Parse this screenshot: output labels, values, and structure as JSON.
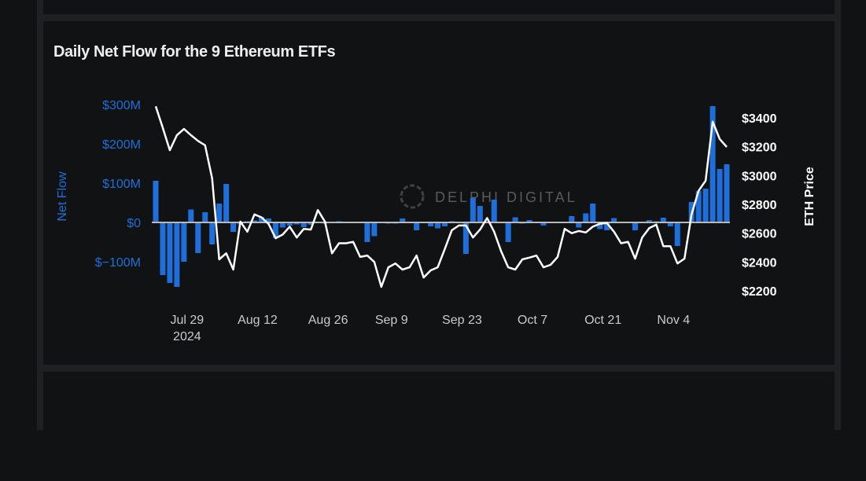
{
  "chart_data": {
    "type": "bar+line",
    "title": "Daily Net Flow for the 9 Ethereum ETFs",
    "watermark": "DELPHI DIGITAL",
    "y_left": {
      "label": "Net Flow",
      "lim": [
        -160,
        300
      ],
      "ticks": [
        300,
        200,
        100,
        0,
        -100
      ],
      "tick_labels": [
        "$300M",
        "$200M",
        "$100M",
        "$0",
        "$−100M"
      ],
      "color": "#1e6fd9"
    },
    "y_right": {
      "label": "ETH Price",
      "lim": [
        2200,
        3400
      ],
      "ticks": [
        3400,
        3200,
        3000,
        2800,
        2600,
        2400,
        2200
      ],
      "tick_labels": [
        "$3400",
        "$3200",
        "$3000",
        "$2800",
        "$2600",
        "$2400",
        "$2200"
      ],
      "color": "#ffffff"
    },
    "x_ticks": [
      {
        "date": "2024-07-29",
        "label": "Jul 29",
        "sublabel": "2024"
      },
      {
        "date": "2024-08-12",
        "label": "Aug 12"
      },
      {
        "date": "2024-08-26",
        "label": "Aug 26"
      },
      {
        "date": "2024-09-09",
        "label": "Sep 9"
      },
      {
        "date": "2024-09-23",
        "label": "Sep 23"
      },
      {
        "date": "2024-10-07",
        "label": "Oct 7"
      },
      {
        "date": "2024-10-21",
        "label": "Oct 21"
      },
      {
        "date": "2024-11-04",
        "label": "Nov 4"
      }
    ],
    "grid": false,
    "dates": [
      "2024-07-23",
      "2024-07-24",
      "2024-07-25",
      "2024-07-26",
      "2024-07-29",
      "2024-07-30",
      "2024-07-31",
      "2024-08-01",
      "2024-08-02",
      "2024-08-05",
      "2024-08-06",
      "2024-08-07",
      "2024-08-08",
      "2024-08-09",
      "2024-08-12",
      "2024-08-13",
      "2024-08-14",
      "2024-08-15",
      "2024-08-16",
      "2024-08-19",
      "2024-08-20",
      "2024-08-21",
      "2024-08-22",
      "2024-08-23",
      "2024-08-26",
      "2024-08-27",
      "2024-08-28",
      "2024-08-29",
      "2024-08-30",
      "2024-09-03",
      "2024-09-04",
      "2024-09-05",
      "2024-09-06",
      "2024-09-09",
      "2024-09-10",
      "2024-09-11",
      "2024-09-12",
      "2024-09-13",
      "2024-09-16",
      "2024-09-17",
      "2024-09-18",
      "2024-09-19",
      "2024-09-20",
      "2024-09-23",
      "2024-09-24",
      "2024-09-25",
      "2024-09-26",
      "2024-09-27",
      "2024-09-30",
      "2024-10-01",
      "2024-10-02",
      "2024-10-03",
      "2024-10-04",
      "2024-10-07",
      "2024-10-08",
      "2024-10-09",
      "2024-10-10",
      "2024-10-11",
      "2024-10-14",
      "2024-10-15",
      "2024-10-16",
      "2024-10-17",
      "2024-10-18",
      "2024-10-21",
      "2024-10-22",
      "2024-10-23",
      "2024-10-24",
      "2024-10-25",
      "2024-10-28",
      "2024-10-29",
      "2024-10-30",
      "2024-10-31",
      "2024-11-01",
      "2024-11-04",
      "2024-11-05",
      "2024-11-06",
      "2024-11-07",
      "2024-11-08",
      "2024-11-11",
      "2024-11-12",
      "2024-11-13",
      "2024-11-14"
    ],
    "series": [
      {
        "name": "Net Flow",
        "type": "bar",
        "color": "#1e6fd9",
        "values": [
          106,
          -134,
          -154,
          -164,
          -100,
          33,
          -78,
          26,
          -56,
          48,
          98,
          -24,
          -5,
          3,
          5,
          14,
          10,
          -40,
          -13,
          -8,
          -5,
          -12,
          -6,
          2,
          -3,
          2,
          3,
          0,
          1,
          0,
          -50,
          -35,
          0,
          -3,
          -3,
          10,
          -2,
          -20,
          1,
          -10,
          -15,
          -10,
          3,
          1,
          -80,
          62,
          42,
          0,
          58,
          -2,
          -50,
          13,
          -3,
          6,
          0,
          -8,
          0,
          1,
          0,
          16,
          -13,
          23,
          48,
          -17,
          -20,
          11,
          1,
          0,
          -20,
          1,
          6,
          3,
          12,
          -10,
          -60,
          0,
          52,
          80,
          86,
          296,
          136,
          148
        ]
      },
      {
        "name": "ETH Price",
        "type": "line",
        "color": "#ffffff",
        "values": [
          3480,
          3330,
          3176,
          3280,
          3323,
          3280,
          3240,
          3210,
          2980,
          2418,
          2460,
          2347,
          2680,
          2610,
          2730,
          2710,
          2665,
          2565,
          2590,
          2645,
          2570,
          2630,
          2625,
          2760,
          2680,
          2460,
          2530,
          2530,
          2540,
          2435,
          2445,
          2400,
          2227,
          2363,
          2390,
          2347,
          2363,
          2445,
          2292,
          2342,
          2363,
          2490,
          2620,
          2653,
          2653,
          2570,
          2625,
          2705,
          2610,
          2473,
          2363,
          2347,
          2418,
          2430,
          2445,
          2363,
          2380,
          2435,
          2630,
          2600,
          2615,
          2605,
          2645,
          2665,
          2670,
          2610,
          2530,
          2540,
          2423,
          2570,
          2635,
          2660,
          2510,
          2510,
          2390,
          2423,
          2730,
          2893,
          2964,
          3373,
          3253,
          3198
        ]
      }
    ]
  }
}
